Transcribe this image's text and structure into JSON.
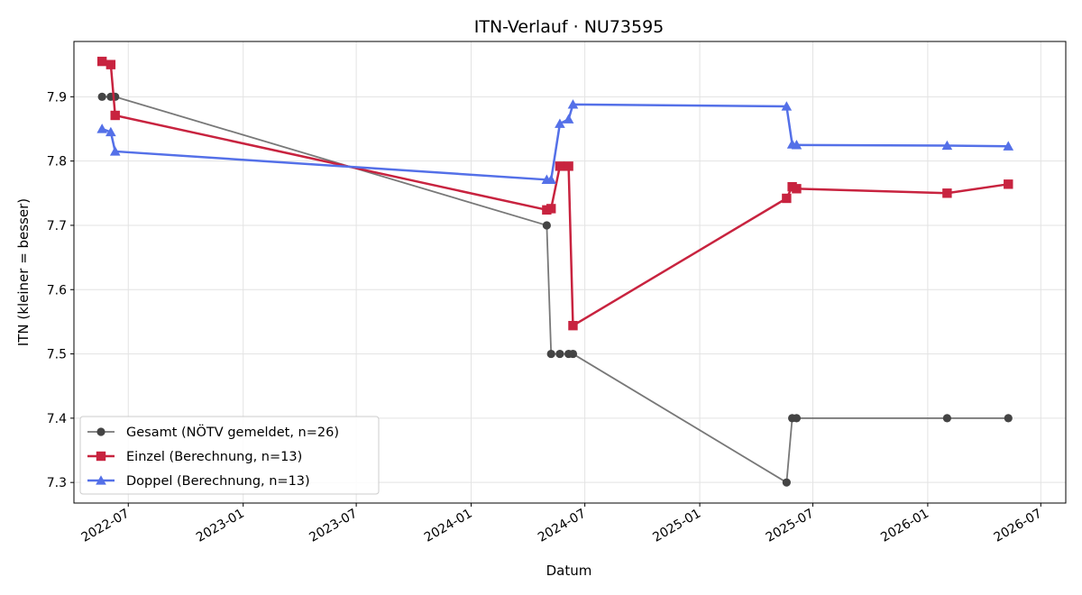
{
  "chart_data": {
    "type": "line",
    "title": "ITN-Verlauf · NU73595",
    "xlabel": "Datum",
    "ylabel": "ITN  (kleiner = besser)",
    "xlim": [
      "2022-04-05",
      "2026-08-10"
    ],
    "ylim": [
      7.268,
      7.986
    ],
    "x_ticks": [
      "2022-07",
      "2023-01",
      "2023-07",
      "2024-01",
      "2024-07",
      "2025-01",
      "2025-07",
      "2026-01",
      "2026-07"
    ],
    "y_ticks": [
      7.3,
      7.4,
      7.5,
      7.6,
      7.7,
      7.8,
      7.9
    ],
    "grid": true,
    "legend_position": "lower-left",
    "series": [
      {
        "name": "Gesamt (NÖTV gemeldet, n=26)",
        "color": "#444444",
        "marker": "circle",
        "points": [
          {
            "x": "2022-05-20",
            "y": 7.9
          },
          {
            "x": "2022-06-03",
            "y": 7.9
          },
          {
            "x": "2022-06-10",
            "y": 7.9
          },
          {
            "x": "2024-05-01",
            "y": 7.7
          },
          {
            "x": "2024-05-08",
            "y": 7.5
          },
          {
            "x": "2024-05-22",
            "y": 7.5
          },
          {
            "x": "2024-06-05",
            "y": 7.5
          },
          {
            "x": "2024-06-12",
            "y": 7.5
          },
          {
            "x": "2025-05-20",
            "y": 7.3
          },
          {
            "x": "2025-05-29",
            "y": 7.4
          },
          {
            "x": "2025-06-05",
            "y": 7.4
          },
          {
            "x": "2026-02-01",
            "y": 7.4
          },
          {
            "x": "2026-05-10",
            "y": 7.4
          }
        ]
      },
      {
        "name": "Einzel (Berechnung, n=13)",
        "color": "#c8233f",
        "marker": "square",
        "points": [
          {
            "x": "2022-05-20",
            "y": 7.955
          },
          {
            "x": "2022-06-03",
            "y": 7.95
          },
          {
            "x": "2022-06-10",
            "y": 7.871
          },
          {
            "x": "2024-05-01",
            "y": 7.724
          },
          {
            "x": "2024-05-08",
            "y": 7.726
          },
          {
            "x": "2024-05-22",
            "y": 7.792
          },
          {
            "x": "2024-06-05",
            "y": 7.792
          },
          {
            "x": "2024-06-12",
            "y": 7.544
          },
          {
            "x": "2025-05-20",
            "y": 7.742
          },
          {
            "x": "2025-05-29",
            "y": 7.76
          },
          {
            "x": "2025-06-05",
            "y": 7.757
          },
          {
            "x": "2026-02-01",
            "y": 7.75
          },
          {
            "x": "2026-05-10",
            "y": 7.764
          }
        ]
      },
      {
        "name": "Doppel (Berechnung, n=13)",
        "color": "#5470e8",
        "marker": "triangle",
        "points": [
          {
            "x": "2022-05-20",
            "y": 7.85
          },
          {
            "x": "2022-06-03",
            "y": 7.845
          },
          {
            "x": "2022-06-10",
            "y": 7.815
          },
          {
            "x": "2024-05-01",
            "y": 7.771
          },
          {
            "x": "2024-05-08",
            "y": 7.771
          },
          {
            "x": "2024-05-22",
            "y": 7.858
          },
          {
            "x": "2024-06-05",
            "y": 7.865
          },
          {
            "x": "2024-06-12",
            "y": 7.888
          },
          {
            "x": "2025-05-20",
            "y": 7.885
          },
          {
            "x": "2025-05-29",
            "y": 7.826
          },
          {
            "x": "2025-06-05",
            "y": 7.825
          },
          {
            "x": "2026-02-01",
            "y": 7.824
          },
          {
            "x": "2026-05-10",
            "y": 7.823
          }
        ]
      }
    ]
  }
}
